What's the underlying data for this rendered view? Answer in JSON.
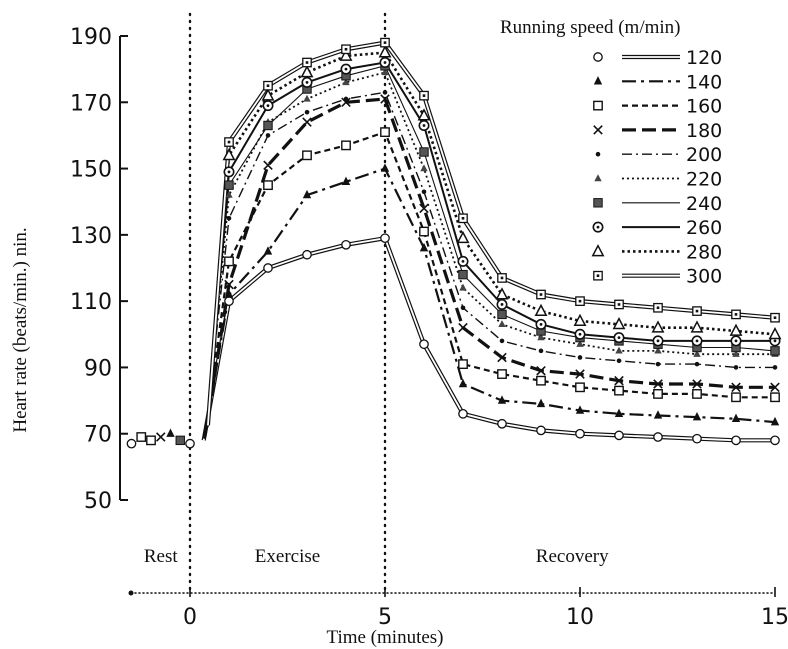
{
  "chart_data": {
    "type": "line",
    "xlabel": "Time (minutes)",
    "ylabel": "Heart rate (beats/min.) nin.",
    "xlim": [
      -1.5,
      15
    ],
    "ylim": [
      50,
      190
    ],
    "x_ticks": [
      0,
      5,
      10,
      15
    ],
    "y_ticks": [
      50,
      70,
      90,
      110,
      130,
      150,
      170,
      190
    ],
    "grid": false,
    "legend_placement": "top-right",
    "legend_title": "Running speed (m/min)",
    "phase_dividers": [
      0,
      5
    ],
    "phase_labels": [
      {
        "text": "Rest",
        "x": -0.75
      },
      {
        "text": "Exercise",
        "x": 2.5
      },
      {
        "text": "Recovery",
        "x": 9.8
      }
    ],
    "rest": {
      "x": [
        -1.5,
        -1.25,
        -1.0,
        -0.75,
        -0.5,
        -0.25,
        0
      ],
      "y": [
        67,
        69,
        68,
        69,
        70,
        68,
        67
      ]
    },
    "series": [
      {
        "name": "120",
        "marker": "circle-open",
        "dash": "double",
        "x": [
          1,
          2,
          3,
          4,
          5,
          6,
          7,
          8,
          9,
          10,
          11,
          12,
          13,
          14,
          15
        ],
        "y": [
          110,
          120,
          124,
          127,
          129,
          97,
          76,
          73,
          71,
          70,
          69.5,
          69,
          68.5,
          68,
          68
        ]
      },
      {
        "name": "140",
        "marker": "triangle-filled",
        "dash": "dashdot",
        "x": [
          1,
          2,
          3,
          4,
          5,
          6,
          7,
          8,
          9,
          10,
          11,
          12,
          13,
          14,
          15
        ],
        "y": [
          112,
          125,
          142,
          146,
          150,
          126,
          85,
          80,
          79,
          77,
          76,
          75.5,
          75,
          74.5,
          73.5
        ]
      },
      {
        "name": "160",
        "marker": "square-open",
        "dash": "dashed",
        "x": [
          1,
          2,
          3,
          4,
          5,
          6,
          7,
          8,
          9,
          10,
          11,
          12,
          13,
          14,
          15
        ],
        "y": [
          122,
          145,
          154,
          157,
          161,
          131,
          91,
          88,
          86,
          84,
          83,
          82,
          82,
          81,
          81
        ]
      },
      {
        "name": "180",
        "marker": "cross",
        "dash": "thick-dash",
        "x": [
          1,
          2,
          3,
          4,
          5,
          6,
          7,
          8,
          9,
          10,
          11,
          12,
          13,
          14,
          15
        ],
        "y": [
          115,
          151,
          164,
          170,
          171,
          138,
          102,
          93,
          89,
          88,
          86,
          85,
          85,
          84,
          84
        ]
      },
      {
        "name": "200",
        "marker": "dot",
        "dash": "dashdot-thin",
        "x": [
          1,
          2,
          3,
          4,
          5,
          6,
          7,
          8,
          9,
          10,
          11,
          12,
          13,
          14,
          15
        ],
        "y": [
          135,
          160,
          167,
          171,
          173,
          143,
          108,
          98,
          95,
          93,
          92,
          91,
          91,
          90,
          90
        ]
      },
      {
        "name": "220",
        "marker": "triangle-filled-small",
        "dash": "dotted",
        "x": [
          1,
          2,
          3,
          4,
          5,
          6,
          7,
          8,
          9,
          10,
          11,
          12,
          13,
          14,
          15
        ],
        "y": [
          142,
          164,
          171,
          176,
          179,
          150,
          114,
          103,
          99,
          97,
          95,
          95,
          94,
          94,
          94
        ]
      },
      {
        "name": "240",
        "marker": "square-filled",
        "dash": "solid-thin",
        "x": [
          1,
          2,
          3,
          4,
          5,
          6,
          7,
          8,
          9,
          10,
          11,
          12,
          13,
          14,
          15
        ],
        "y": [
          145,
          163,
          174,
          178,
          181,
          155,
          118,
          106,
          101,
          99,
          98,
          97,
          96,
          96,
          95
        ]
      },
      {
        "name": "260",
        "marker": "circle-dot",
        "dash": "solid",
        "x": [
          1,
          2,
          3,
          4,
          5,
          6,
          7,
          8,
          9,
          10,
          11,
          12,
          13,
          14,
          15
        ],
        "y": [
          149,
          169,
          176,
          180,
          182,
          163,
          122,
          109,
          103,
          100,
          99,
          98,
          98,
          98,
          98
        ]
      },
      {
        "name": "280",
        "marker": "triangle-open",
        "dash": "dotted-heavy",
        "x": [
          1,
          2,
          3,
          4,
          5,
          6,
          7,
          8,
          9,
          10,
          11,
          12,
          13,
          14,
          15
        ],
        "y": [
          154,
          172,
          179,
          184,
          185,
          166,
          129,
          112,
          107,
          104,
          103,
          102,
          102,
          101,
          100
        ]
      },
      {
        "name": "300",
        "marker": "square-dot",
        "dash": "double",
        "x": [
          1,
          2,
          3,
          4,
          5,
          6,
          7,
          8,
          9,
          10,
          11,
          12,
          13,
          14,
          15
        ],
        "y": [
          158,
          175,
          182,
          186,
          188,
          172,
          135,
          117,
          112,
          110,
          109,
          108,
          107,
          106,
          105
        ]
      }
    ]
  }
}
